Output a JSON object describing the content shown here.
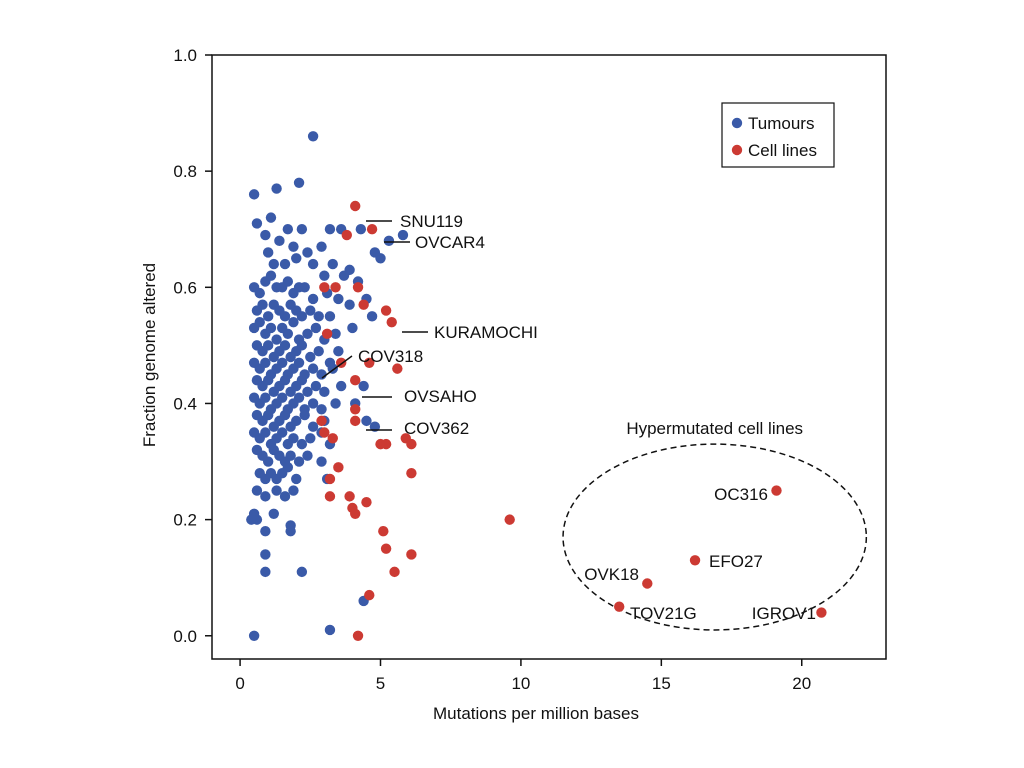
{
  "chart_data": {
    "type": "scatter",
    "title": "",
    "xlabel": "Mutations per million bases",
    "ylabel": "Fraction genome altered",
    "xlim": [
      -1,
      23
    ],
    "ylim": [
      -0.04,
      1.0
    ],
    "xticks": [
      0,
      5,
      10,
      15,
      20
    ],
    "yticks": [
      0.0,
      0.2,
      0.4,
      0.6,
      0.8,
      1.0
    ],
    "xtick_labels": [
      "0",
      "5",
      "10",
      "15",
      "20"
    ],
    "ytick_labels": [
      "0.0",
      "0.2",
      "0.4",
      "0.6",
      "0.8",
      "1.0"
    ],
    "grid": false,
    "legend": {
      "placement": "top-right",
      "entries": [
        {
          "name": "Tumours",
          "color": "#3a5aa8"
        },
        {
          "name": "Cell lines",
          "color": "#cc3a33"
        }
      ]
    },
    "series": [
      {
        "name": "Tumours",
        "color": "#3a5aa8",
        "points": [
          [
            2.6,
            0.86
          ],
          [
            0.5,
            0.76
          ],
          [
            1.3,
            0.77
          ],
          [
            2.1,
            0.78
          ],
          [
            0.6,
            0.71
          ],
          [
            0.9,
            0.69
          ],
          [
            1.1,
            0.72
          ],
          [
            1.7,
            0.7
          ],
          [
            2.2,
            0.7
          ],
          [
            3.2,
            0.7
          ],
          [
            3.6,
            0.7
          ],
          [
            4.3,
            0.7
          ],
          [
            5.8,
            0.69
          ],
          [
            5.3,
            0.68
          ],
          [
            4.8,
            0.66
          ],
          [
            5.0,
            0.65
          ],
          [
            1.0,
            0.66
          ],
          [
            1.4,
            0.68
          ],
          [
            1.9,
            0.67
          ],
          [
            2.4,
            0.66
          ],
          [
            2.9,
            0.67
          ],
          [
            1.2,
            0.64
          ],
          [
            1.6,
            0.64
          ],
          [
            2.0,
            0.65
          ],
          [
            2.6,
            0.64
          ],
          [
            3.3,
            0.64
          ],
          [
            3.9,
            0.63
          ],
          [
            4.2,
            0.61
          ],
          [
            3.7,
            0.62
          ],
          [
            3.0,
            0.62
          ],
          [
            0.5,
            0.6
          ],
          [
            0.7,
            0.59
          ],
          [
            0.9,
            0.61
          ],
          [
            1.1,
            0.62
          ],
          [
            1.3,
            0.6
          ],
          [
            1.5,
            0.6
          ],
          [
            1.7,
            0.61
          ],
          [
            1.9,
            0.59
          ],
          [
            2.1,
            0.6
          ],
          [
            2.3,
            0.6
          ],
          [
            2.6,
            0.58
          ],
          [
            3.1,
            0.59
          ],
          [
            3.5,
            0.58
          ],
          [
            3.9,
            0.57
          ],
          [
            4.5,
            0.58
          ],
          [
            0.6,
            0.56
          ],
          [
            0.8,
            0.57
          ],
          [
            1.0,
            0.55
          ],
          [
            1.2,
            0.57
          ],
          [
            1.4,
            0.56
          ],
          [
            1.6,
            0.55
          ],
          [
            1.8,
            0.57
          ],
          [
            2.0,
            0.56
          ],
          [
            2.2,
            0.55
          ],
          [
            2.5,
            0.56
          ],
          [
            2.8,
            0.55
          ],
          [
            3.2,
            0.55
          ],
          [
            4.7,
            0.55
          ],
          [
            0.5,
            0.53
          ],
          [
            0.7,
            0.54
          ],
          [
            0.9,
            0.52
          ],
          [
            1.1,
            0.53
          ],
          [
            1.3,
            0.51
          ],
          [
            1.5,
            0.53
          ],
          [
            1.7,
            0.52
          ],
          [
            1.9,
            0.54
          ],
          [
            2.1,
            0.51
          ],
          [
            2.4,
            0.52
          ],
          [
            2.7,
            0.53
          ],
          [
            3.0,
            0.51
          ],
          [
            3.4,
            0.52
          ],
          [
            4.0,
            0.53
          ],
          [
            0.6,
            0.5
          ],
          [
            0.8,
            0.49
          ],
          [
            1.0,
            0.5
          ],
          [
            1.2,
            0.48
          ],
          [
            1.4,
            0.49
          ],
          [
            1.6,
            0.5
          ],
          [
            1.8,
            0.48
          ],
          [
            2.0,
            0.49
          ],
          [
            2.2,
            0.5
          ],
          [
            2.5,
            0.48
          ],
          [
            2.8,
            0.49
          ],
          [
            3.5,
            0.49
          ],
          [
            3.2,
            0.47
          ],
          [
            0.5,
            0.47
          ],
          [
            0.7,
            0.46
          ],
          [
            0.9,
            0.47
          ],
          [
            1.1,
            0.45
          ],
          [
            1.3,
            0.46
          ],
          [
            1.5,
            0.47
          ],
          [
            1.7,
            0.45
          ],
          [
            1.9,
            0.46
          ],
          [
            2.1,
            0.47
          ],
          [
            2.3,
            0.45
          ],
          [
            2.6,
            0.46
          ],
          [
            2.9,
            0.45
          ],
          [
            3.3,
            0.46
          ],
          [
            0.6,
            0.44
          ],
          [
            0.8,
            0.43
          ],
          [
            1.0,
            0.44
          ],
          [
            1.2,
            0.42
          ],
          [
            1.4,
            0.43
          ],
          [
            1.6,
            0.44
          ],
          [
            1.8,
            0.42
          ],
          [
            2.0,
            0.43
          ],
          [
            2.2,
            0.44
          ],
          [
            2.4,
            0.42
          ],
          [
            2.7,
            0.43
          ],
          [
            3.0,
            0.42
          ],
          [
            3.6,
            0.43
          ],
          [
            4.4,
            0.43
          ],
          [
            0.5,
            0.41
          ],
          [
            0.7,
            0.4
          ],
          [
            0.9,
            0.41
          ],
          [
            1.1,
            0.39
          ],
          [
            1.3,
            0.4
          ],
          [
            1.5,
            0.41
          ],
          [
            1.7,
            0.39
          ],
          [
            1.9,
            0.4
          ],
          [
            2.1,
            0.41
          ],
          [
            2.3,
            0.39
          ],
          [
            2.6,
            0.4
          ],
          [
            2.9,
            0.39
          ],
          [
            3.4,
            0.4
          ],
          [
            4.1,
            0.4
          ],
          [
            0.6,
            0.38
          ],
          [
            0.8,
            0.37
          ],
          [
            1.0,
            0.38
          ],
          [
            1.2,
            0.36
          ],
          [
            1.4,
            0.37
          ],
          [
            1.6,
            0.38
          ],
          [
            1.8,
            0.36
          ],
          [
            2.0,
            0.37
          ],
          [
            2.3,
            0.38
          ],
          [
            2.6,
            0.36
          ],
          [
            3.0,
            0.37
          ],
          [
            4.5,
            0.37
          ],
          [
            4.8,
            0.36
          ],
          [
            0.5,
            0.35
          ],
          [
            0.7,
            0.34
          ],
          [
            0.9,
            0.35
          ],
          [
            1.1,
            0.33
          ],
          [
            1.3,
            0.34
          ],
          [
            1.5,
            0.35
          ],
          [
            1.7,
            0.33
          ],
          [
            1.9,
            0.34
          ],
          [
            2.2,
            0.33
          ],
          [
            2.5,
            0.34
          ],
          [
            2.9,
            0.35
          ],
          [
            3.2,
            0.33
          ],
          [
            0.6,
            0.32
          ],
          [
            0.8,
            0.31
          ],
          [
            1.0,
            0.3
          ],
          [
            1.2,
            0.32
          ],
          [
            1.4,
            0.31
          ],
          [
            1.6,
            0.3
          ],
          [
            1.8,
            0.31
          ],
          [
            2.1,
            0.3
          ],
          [
            2.4,
            0.31
          ],
          [
            2.9,
            0.3
          ],
          [
            0.7,
            0.28
          ],
          [
            0.9,
            0.27
          ],
          [
            1.1,
            0.28
          ],
          [
            1.3,
            0.27
          ],
          [
            1.5,
            0.28
          ],
          [
            1.7,
            0.29
          ],
          [
            2.0,
            0.27
          ],
          [
            3.1,
            0.27
          ],
          [
            0.6,
            0.25
          ],
          [
            0.9,
            0.24
          ],
          [
            1.3,
            0.25
          ],
          [
            1.6,
            0.24
          ],
          [
            1.9,
            0.25
          ],
          [
            0.5,
            0.21
          ],
          [
            0.4,
            0.2
          ],
          [
            0.6,
            0.2
          ],
          [
            1.2,
            0.21
          ],
          [
            1.8,
            0.19
          ],
          [
            0.9,
            0.18
          ],
          [
            1.8,
            0.18
          ],
          [
            0.9,
            0.14
          ],
          [
            0.9,
            0.11
          ],
          [
            2.2,
            0.11
          ],
          [
            4.4,
            0.06
          ],
          [
            3.2,
            0.01
          ],
          [
            0.5,
            0.0
          ]
        ]
      },
      {
        "name": "Cell lines",
        "color": "#cc3a33",
        "points": [
          [
            4.1,
            0.74
          ],
          [
            3.8,
            0.69
          ],
          [
            4.7,
            0.7
          ],
          [
            3.0,
            0.6
          ],
          [
            3.4,
            0.6
          ],
          [
            4.2,
            0.6
          ],
          [
            4.4,
            0.57
          ],
          [
            5.2,
            0.56
          ],
          [
            5.4,
            0.54
          ],
          [
            3.1,
            0.52
          ],
          [
            3.6,
            0.47
          ],
          [
            4.6,
            0.47
          ],
          [
            5.6,
            0.46
          ],
          [
            4.1,
            0.44
          ],
          [
            4.1,
            0.39
          ],
          [
            4.1,
            0.37
          ],
          [
            2.9,
            0.37
          ],
          [
            3.0,
            0.35
          ],
          [
            3.3,
            0.34
          ],
          [
            5.9,
            0.34
          ],
          [
            5.0,
            0.33
          ],
          [
            5.2,
            0.33
          ],
          [
            6.1,
            0.33
          ],
          [
            3.5,
            0.29
          ],
          [
            3.2,
            0.27
          ],
          [
            6.1,
            0.28
          ],
          [
            3.2,
            0.24
          ],
          [
            3.9,
            0.24
          ],
          [
            4.5,
            0.23
          ],
          [
            4.0,
            0.22
          ],
          [
            4.1,
            0.21
          ],
          [
            9.6,
            0.2
          ],
          [
            5.1,
            0.18
          ],
          [
            5.2,
            0.15
          ],
          [
            6.1,
            0.14
          ],
          [
            5.5,
            0.11
          ],
          [
            4.6,
            0.07
          ],
          [
            4.2,
            0.0
          ],
          [
            19.1,
            0.25
          ],
          [
            16.2,
            0.13
          ],
          [
            14.5,
            0.09
          ],
          [
            13.5,
            0.05
          ],
          [
            20.7,
            0.04
          ]
        ]
      }
    ],
    "annotations": [
      {
        "label": "SNU119",
        "point": [
          4.1,
          0.74
        ]
      },
      {
        "label": "OVCAR4",
        "point": [
          4.7,
          0.7
        ]
      },
      {
        "label": "KURAMOCHI",
        "point": [
          5.4,
          0.54
        ]
      },
      {
        "label": "COV318",
        "point": [
          3.0,
          0.44
        ]
      },
      {
        "label": "OVSAHO",
        "point": [
          4.3,
          0.42
        ]
      },
      {
        "label": "COV362",
        "point": [
          4.4,
          0.37
        ]
      },
      {
        "label": "OC316",
        "point": [
          19.1,
          0.25
        ]
      },
      {
        "label": "EFO27",
        "point": [
          16.2,
          0.13
        ]
      },
      {
        "label": "OVK18",
        "point": [
          14.5,
          0.09
        ]
      },
      {
        "label": "TOV21G",
        "point": [
          13.5,
          0.05
        ]
      },
      {
        "label": "IGROV1",
        "point": [
          20.7,
          0.04
        ]
      }
    ],
    "group_annotation": {
      "label": "Hypermutated cell lines",
      "shape": "dashed-ellipse",
      "center": [
        16.9,
        0.17
      ],
      "x_radius": 5.4,
      "y_radius": 0.16
    }
  }
}
